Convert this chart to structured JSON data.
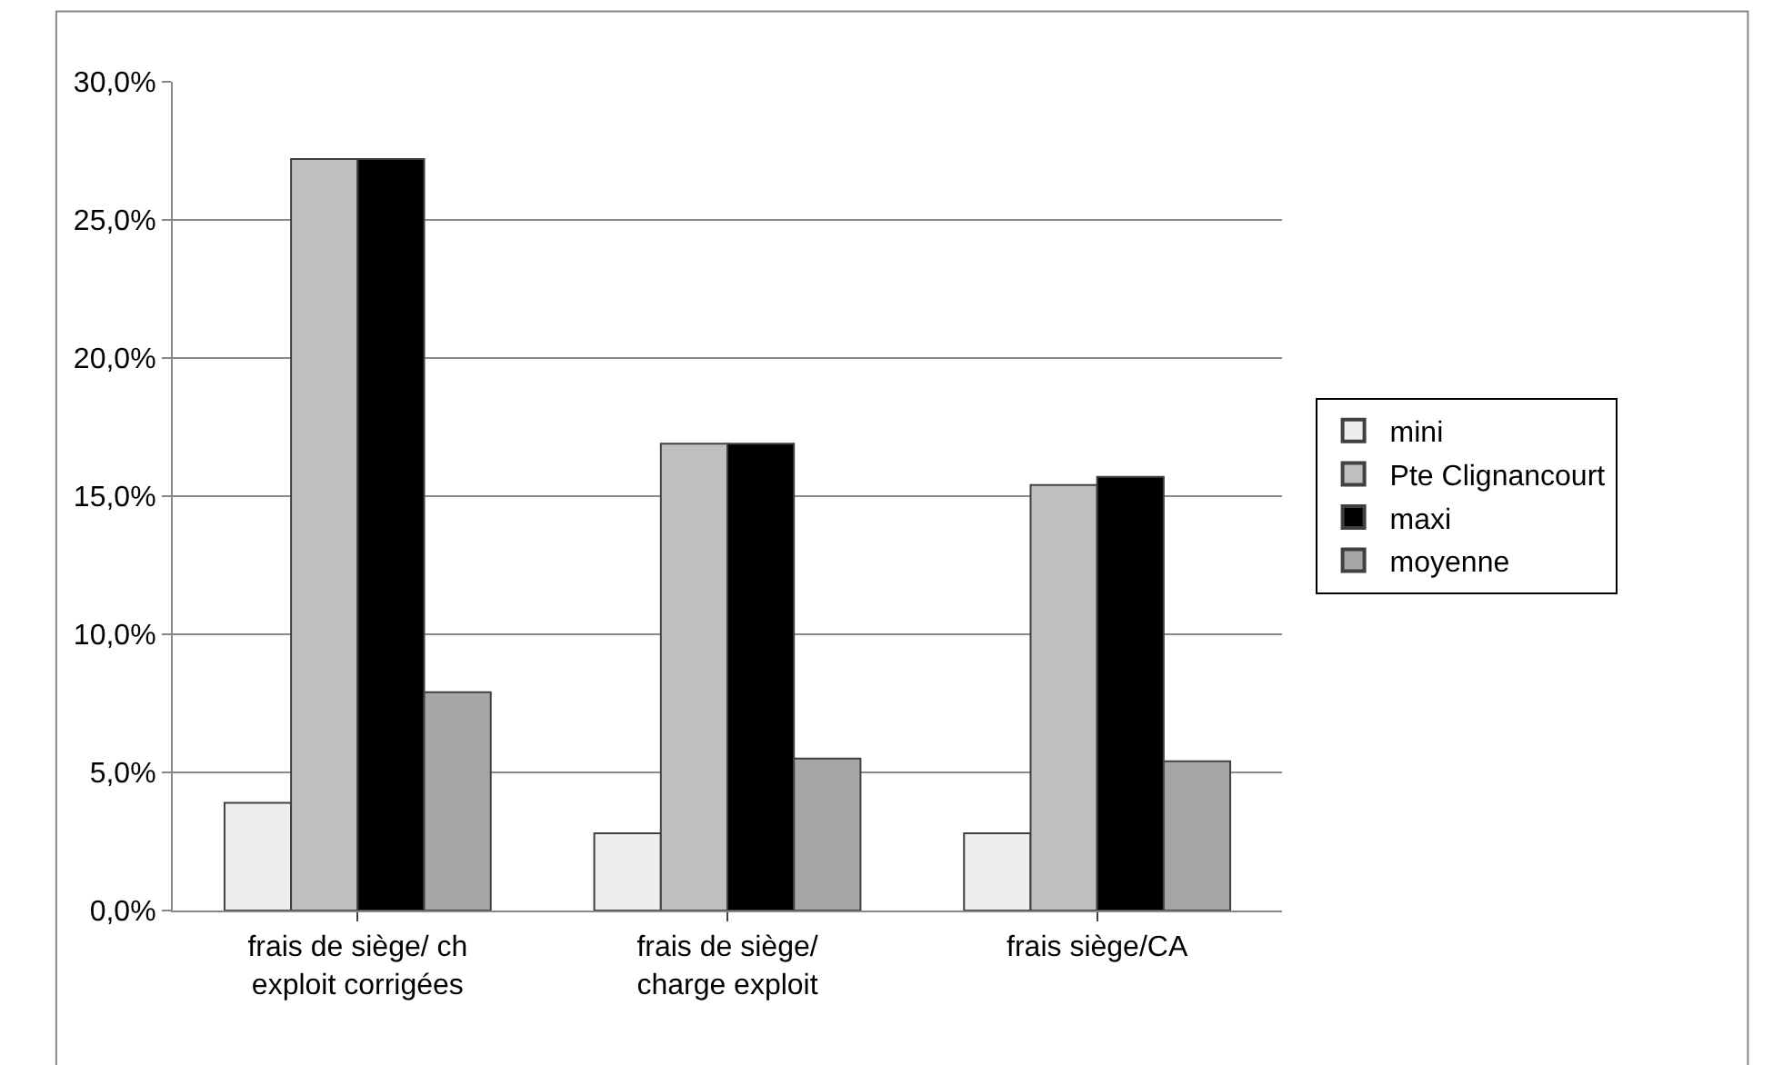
{
  "chart_data": {
    "type": "bar",
    "categories": [
      "frais de siège/ ch exploit corrigées",
      "frais de siège/ charge exploit",
      "frais siège/CA"
    ],
    "series": [
      {
        "name": "mini",
        "color": "#eeeeee",
        "values": [
          3.9,
          2.8,
          2.8
        ]
      },
      {
        "name": "Pte Clignancourt",
        "color": "#bfbfbf",
        "values": [
          27.2,
          16.9,
          15.4
        ]
      },
      {
        "name": "maxi",
        "color": "#000000",
        "values": [
          27.2,
          16.9,
          15.7
        ]
      },
      {
        "name": "moyenne",
        "color": "#a6a6a6",
        "values": [
          7.9,
          5.5,
          5.4
        ]
      }
    ],
    "ylim": [
      0,
      30
    ],
    "yticks": [
      {
        "value": 0,
        "label": "0,0%"
      },
      {
        "value": 5,
        "label": "5,0%"
      },
      {
        "value": 10,
        "label": "10,0%"
      },
      {
        "value": 15,
        "label": "15,0%"
      },
      {
        "value": 20,
        "label": "20,0%"
      },
      {
        "value": 25,
        "label": "25,0%"
      },
      {
        "value": 30,
        "label": "30,0%"
      }
    ],
    "grid": "y",
    "legend": "right"
  }
}
